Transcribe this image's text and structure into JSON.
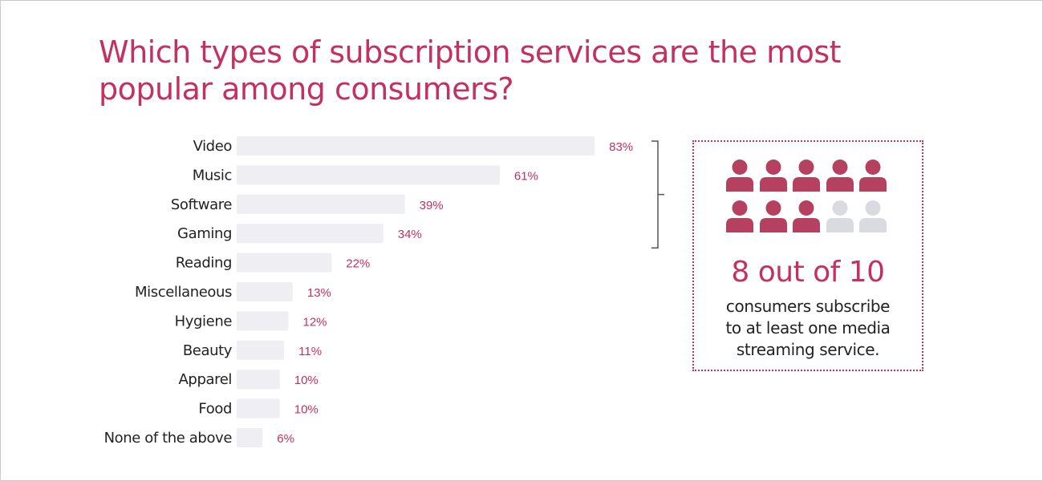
{
  "colors": {
    "title": "#c4305f",
    "bar": "#eeeef3",
    "value_label": "#c4305f",
    "icon_filled": "#b5405f",
    "icon_empty": "#d9dbe0",
    "bracket": "#555555"
  },
  "title": "Which types of subscription services are the most popular among consumers?",
  "chart_data": {
    "type": "bar",
    "orientation": "horizontal",
    "categories": [
      "Video",
      "Music",
      "Software",
      "Gaming",
      "Reading",
      "Miscellaneous",
      "Hygiene",
      "Beauty",
      "Apparel",
      "Food",
      "None of the above"
    ],
    "values": [
      83,
      61,
      39,
      34,
      22,
      13,
      12,
      11,
      10,
      10,
      6
    ],
    "value_labels": [
      "83%",
      "61%",
      "39%",
      "34%",
      "22%",
      "13%",
      "12%",
      "11%",
      "10%",
      "10%",
      "6%"
    ],
    "xlim": [
      0,
      100
    ],
    "grid": false,
    "bracket_spans": [
      "Video",
      "Gaming"
    ]
  },
  "callout": {
    "icon": "person-icon",
    "filled_count": 8,
    "total_count": 10,
    "headline": "8 out of 10",
    "lines": [
      "consumers subscribe",
      "to at least one media",
      "streaming service."
    ]
  }
}
